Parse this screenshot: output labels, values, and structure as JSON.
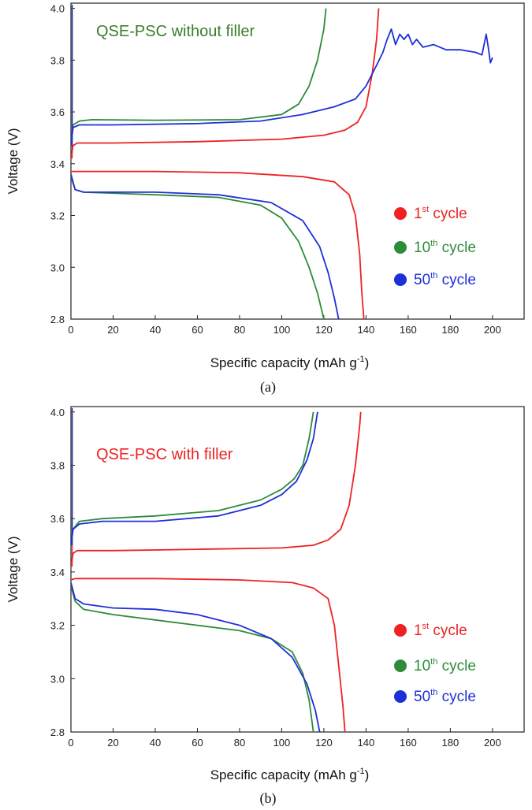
{
  "chart_data": [
    {
      "type": "line",
      "panel_caption": "(a)",
      "title": "QSE-PSC without filler",
      "title_color": "#3a7d2a",
      "xlabel_main": "Specific capacity (mAh g",
      "xlabel_sup": "-1",
      "xlabel_end": ")",
      "ylabel": "Voltage (V)",
      "xlim": [
        0,
        215
      ],
      "ylim": [
        2.8,
        4.02
      ],
      "xticks": [
        0,
        20,
        40,
        60,
        80,
        100,
        120,
        140,
        160,
        180,
        200
      ],
      "yticks": [
        2.8,
        3.0,
        3.2,
        3.4,
        3.6,
        3.8,
        4.0
      ],
      "ytick_labels": [
        "2.8",
        "3.0",
        "3.2",
        "3.4",
        "3.6",
        "3.8",
        "4.0"
      ],
      "legend_position": "lower-right",
      "series": [
        {
          "name": "1st cycle",
          "label_main": "1",
          "label_sup": "st",
          "label_end": " cycle",
          "color": "#ee2222",
          "charge": [
            [
              0,
              3.42
            ],
            [
              1,
              3.47
            ],
            [
              3,
              3.48
            ],
            [
              20,
              3.48
            ],
            [
              60,
              3.485
            ],
            [
              100,
              3.495
            ],
            [
              120,
              3.51
            ],
            [
              130,
              3.53
            ],
            [
              136,
              3.56
            ],
            [
              140,
              3.62
            ],
            [
              143,
              3.75
            ],
            [
              145,
              3.88
            ],
            [
              146,
              4.0
            ]
          ],
          "discharge": [
            [
              0,
              3.37
            ],
            [
              2,
              3.37
            ],
            [
              40,
              3.37
            ],
            [
              80,
              3.365
            ],
            [
              110,
              3.35
            ],
            [
              125,
              3.33
            ],
            [
              132,
              3.28
            ],
            [
              135,
              3.2
            ],
            [
              137,
              3.05
            ],
            [
              138,
              2.9
            ],
            [
              139,
              2.8
            ]
          ]
        },
        {
          "name": "10th cycle",
          "label_main": "10",
          "label_sup": "th",
          "label_end": " cycle",
          "color": "#2e8b3a",
          "charge": [
            [
              0,
              3.48
            ],
            [
              1,
              3.55
            ],
            [
              4,
              3.565
            ],
            [
              10,
              3.57
            ],
            [
              40,
              3.568
            ],
            [
              80,
              3.57
            ],
            [
              100,
              3.59
            ],
            [
              108,
              3.63
            ],
            [
              113,
              3.7
            ],
            [
              117,
              3.8
            ],
            [
              120,
              3.92
            ],
            [
              121,
              4.0
            ]
          ],
          "discharge": [
            [
              0,
              3.35
            ],
            [
              2,
              3.3
            ],
            [
              6,
              3.29
            ],
            [
              40,
              3.28
            ],
            [
              70,
              3.27
            ],
            [
              90,
              3.24
            ],
            [
              100,
              3.19
            ],
            [
              108,
              3.1
            ],
            [
              113,
              3.0
            ],
            [
              117,
              2.9
            ],
            [
              120,
              2.8
            ]
          ]
        },
        {
          "name": "50th cycle",
          "label_main": "50",
          "label_sup": "th",
          "label_end": " cycle",
          "color": "#1f2fd8",
          "charge": [
            [
              0,
              3.47
            ],
            [
              1,
              3.54
            ],
            [
              4,
              3.55
            ],
            [
              20,
              3.55
            ],
            [
              60,
              3.555
            ],
            [
              90,
              3.565
            ],
            [
              110,
              3.59
            ],
            [
              125,
              3.62
            ],
            [
              135,
              3.65
            ],
            [
              140,
              3.7
            ],
            [
              145,
              3.78
            ],
            [
              148,
              3.83
            ],
            [
              150,
              3.88
            ],
            [
              152,
              3.92
            ],
            [
              154,
              3.86
            ],
            [
              156,
              3.9
            ],
            [
              158,
              3.88
            ],
            [
              160,
              3.9
            ],
            [
              162,
              3.86
            ],
            [
              164,
              3.88
            ],
            [
              167,
              3.85
            ],
            [
              172,
              3.86
            ],
            [
              178,
              3.84
            ],
            [
              185,
              3.84
            ],
            [
              192,
              3.83
            ],
            [
              195,
              3.82
            ],
            [
              197,
              3.9
            ],
            [
              198,
              3.85
            ],
            [
              199,
              3.79
            ],
            [
              200,
              3.81
            ]
          ],
          "discharge": [
            [
              0,
              3.36
            ],
            [
              2,
              3.3
            ],
            [
              6,
              3.29
            ],
            [
              40,
              3.29
            ],
            [
              70,
              3.28
            ],
            [
              95,
              3.25
            ],
            [
              110,
              3.18
            ],
            [
              118,
              3.08
            ],
            [
              122,
              2.98
            ],
            [
              125,
              2.88
            ],
            [
              127,
              2.8
            ]
          ]
        }
      ]
    },
    {
      "type": "line",
      "panel_caption": "(b)",
      "title": "QSE-PSC with filler",
      "title_color": "#ee2222",
      "xlabel_main": "Specific capacity (mAh g",
      "xlabel_sup": "-1",
      "xlabel_end": ")",
      "ylabel": "Voltage (V)",
      "xlim": [
        0,
        215
      ],
      "ylim": [
        2.8,
        4.02
      ],
      "xticks": [
        0,
        20,
        40,
        60,
        80,
        100,
        120,
        140,
        160,
        180,
        200
      ],
      "yticks": [
        2.8,
        3.0,
        3.2,
        3.4,
        3.6,
        3.8,
        4.0
      ],
      "ytick_labels": [
        "2.8",
        "3.0",
        "3.2",
        "3.4",
        "3.6",
        "3.8",
        "4.0"
      ],
      "legend_position": "lower-right",
      "series": [
        {
          "name": "1st cycle",
          "label_main": "1",
          "label_sup": "st",
          "label_end": " cycle",
          "color": "#ee2222",
          "charge": [
            [
              0,
              3.42
            ],
            [
              1,
              3.47
            ],
            [
              3,
              3.48
            ],
            [
              20,
              3.48
            ],
            [
              60,
              3.485
            ],
            [
              100,
              3.49
            ],
            [
              115,
              3.5
            ],
            [
              122,
              3.52
            ],
            [
              128,
              3.56
            ],
            [
              132,
              3.65
            ],
            [
              135,
              3.8
            ],
            [
              137,
              3.95
            ],
            [
              137.5,
              4.0
            ]
          ],
          "discharge": [
            [
              0,
              3.37
            ],
            [
              2,
              3.375
            ],
            [
              40,
              3.375
            ],
            [
              80,
              3.37
            ],
            [
              105,
              3.36
            ],
            [
              115,
              3.34
            ],
            [
              122,
              3.3
            ],
            [
              125,
              3.2
            ],
            [
              127,
              3.05
            ],
            [
              129,
              2.9
            ],
            [
              130,
              2.8
            ]
          ]
        },
        {
          "name": "10th cycle",
          "label_main": "10",
          "label_sup": "th",
          "label_end": " cycle",
          "color": "#2e8b3a",
          "charge": [
            [
              0,
              3.5
            ],
            [
              1,
              3.56
            ],
            [
              4,
              3.59
            ],
            [
              15,
              3.6
            ],
            [
              40,
              3.61
            ],
            [
              70,
              3.63
            ],
            [
              90,
              3.67
            ],
            [
              100,
              3.71
            ],
            [
              106,
              3.75
            ],
            [
              110,
              3.8
            ],
            [
              113,
              3.9
            ],
            [
              115,
              4.0
            ]
          ],
          "discharge": [
            [
              0,
              3.35
            ],
            [
              2,
              3.29
            ],
            [
              6,
              3.26
            ],
            [
              20,
              3.24
            ],
            [
              40,
              3.22
            ],
            [
              60,
              3.2
            ],
            [
              80,
              3.18
            ],
            [
              95,
              3.15
            ],
            [
              105,
              3.1
            ],
            [
              110,
              3.02
            ],
            [
              113,
              2.92
            ],
            [
              115,
              2.8
            ]
          ]
        },
        {
          "name": "50th cycle",
          "label_main": "50",
          "label_sup": "th",
          "label_end": " cycle",
          "color": "#1f2fd8",
          "charge": [
            [
              0,
              3.5
            ],
            [
              1,
              3.56
            ],
            [
              4,
              3.58
            ],
            [
              15,
              3.59
            ],
            [
              40,
              3.59
            ],
            [
              70,
              3.61
            ],
            [
              90,
              3.65
            ],
            [
              100,
              3.69
            ],
            [
              107,
              3.74
            ],
            [
              112,
              3.82
            ],
            [
              115,
              3.9
            ],
            [
              117,
              4.0
            ]
          ],
          "discharge": [
            [
              0,
              3.36
            ],
            [
              2,
              3.3
            ],
            [
              6,
              3.28
            ],
            [
              20,
              3.265
            ],
            [
              40,
              3.26
            ],
            [
              60,
              3.24
            ],
            [
              80,
              3.2
            ],
            [
              95,
              3.15
            ],
            [
              105,
              3.08
            ],
            [
              112,
              2.98
            ],
            [
              116,
              2.88
            ],
            [
              118,
              2.8
            ]
          ]
        }
      ]
    }
  ]
}
